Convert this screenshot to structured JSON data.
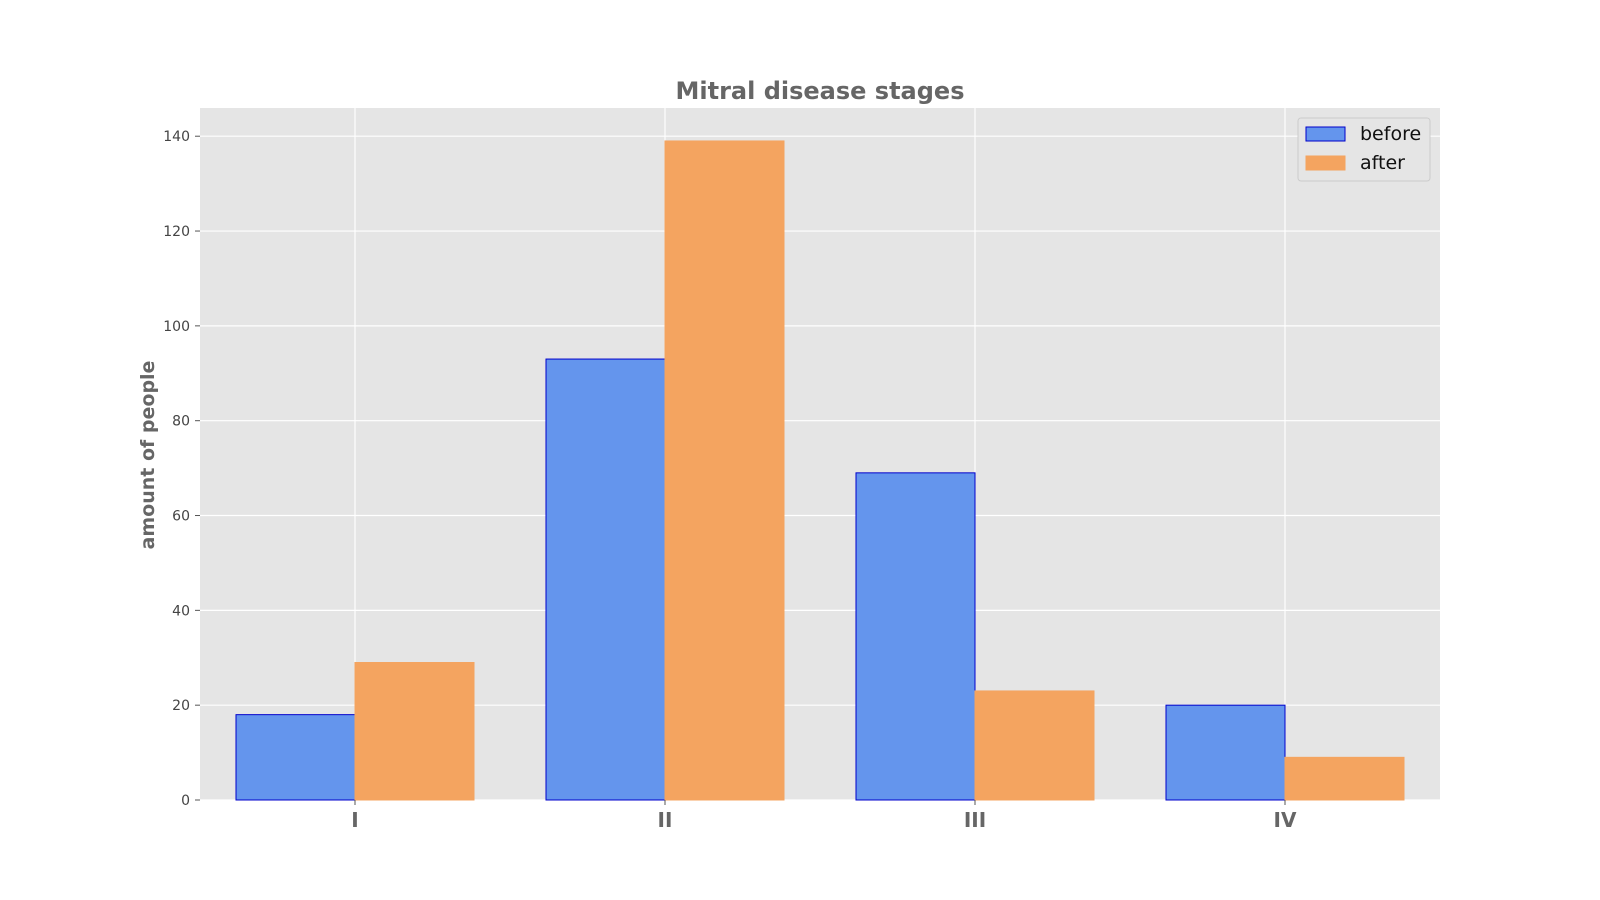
{
  "chart_data": {
    "type": "bar",
    "title": "Mitral disease stages",
    "xlabel": "",
    "ylabel": "amount of people",
    "categories": [
      "I",
      "II",
      "III",
      "IV"
    ],
    "series": [
      {
        "name": "before",
        "values": [
          18,
          93,
          69,
          20
        ],
        "color": "#6495ed",
        "edge": "#0000cc"
      },
      {
        "name": "after",
        "values": [
          29,
          139,
          23,
          9
        ],
        "color": "#f4a460",
        "edge": "#f4a460"
      }
    ],
    "ylim": [
      0,
      145.95
    ],
    "yticks": [
      0,
      20,
      40,
      60,
      80,
      100,
      120,
      140
    ],
    "grid": true,
    "legend": "top-right",
    "background": "#e5e5e5"
  }
}
